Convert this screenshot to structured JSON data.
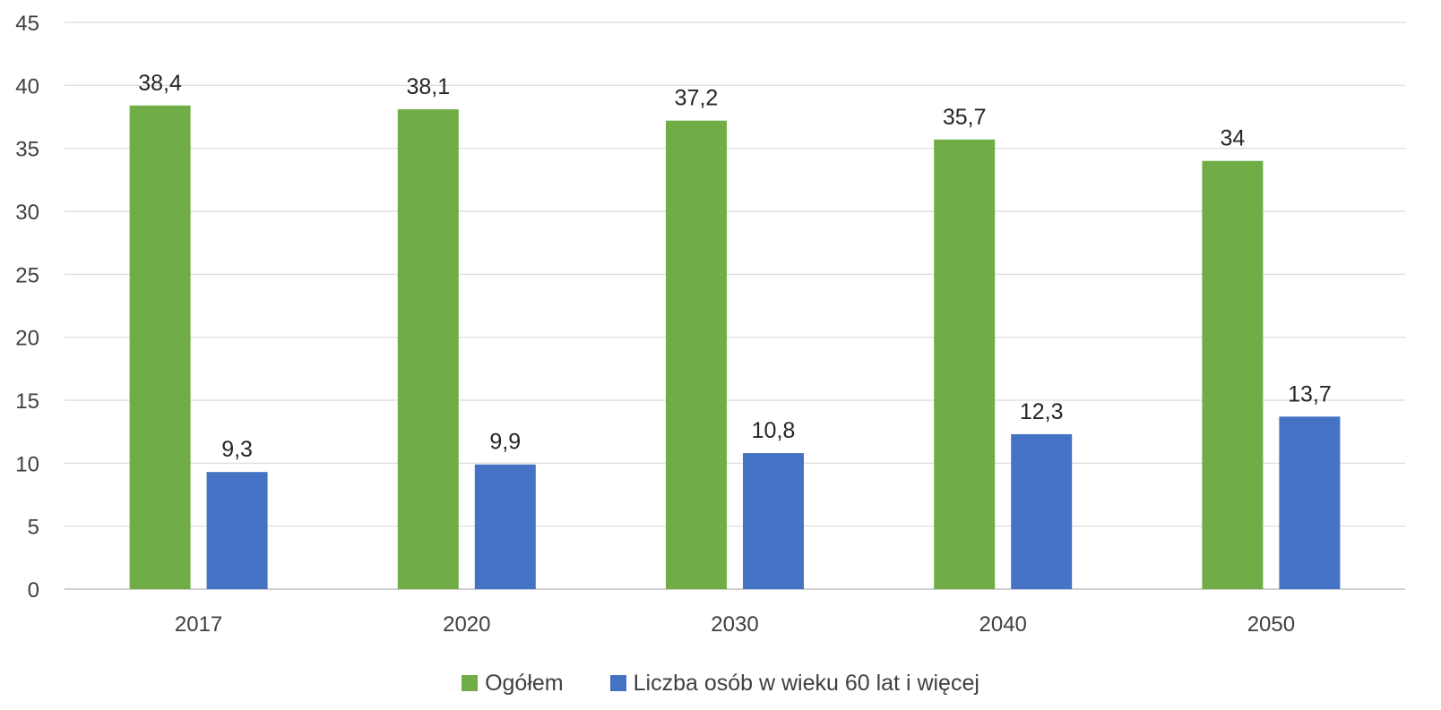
{
  "chart_data": {
    "type": "bar",
    "title": "",
    "xlabel": "",
    "ylabel": "",
    "categories": [
      "2017",
      "2020",
      "2030",
      "2040",
      "2050"
    ],
    "series": [
      {
        "name": "Ogółem",
        "color": "#70ad47",
        "values": [
          38.4,
          38.1,
          37.2,
          35.7,
          34
        ],
        "labels": [
          "38,4",
          "38,1",
          "37,2",
          "35,7",
          "34"
        ]
      },
      {
        "name": "Liczba osób w wieku 60 lat i więcej",
        "color": "#4472c4",
        "values": [
          9.3,
          9.9,
          10.8,
          12.3,
          13.7
        ],
        "labels": [
          "9,3",
          "9,9",
          "10,8",
          "12,3",
          "13,7"
        ]
      }
    ],
    "ylim": [
      0,
      45
    ],
    "yticks": [
      0,
      5,
      10,
      15,
      20,
      25,
      30,
      35,
      40,
      45
    ],
    "grid": true,
    "legend_position": "bottom"
  }
}
